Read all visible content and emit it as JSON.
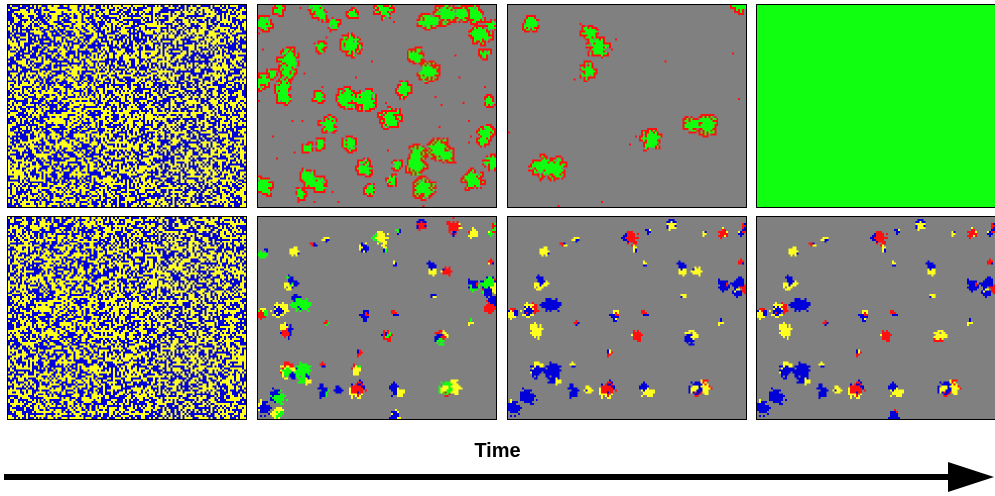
{
  "axis": {
    "label": "Time"
  },
  "colors": {
    "blue": "#0000d8",
    "yellow": "#ffff20",
    "gray": "#808080",
    "red": "#ff1010",
    "green": "#10ff10",
    "border": "#000000"
  },
  "rows": [
    {
      "panels": [
        {
          "stage": 1,
          "state": "random mix of blue and yellow"
        },
        {
          "stage": 2,
          "state": "gray background with many green clusters outlined in red"
        },
        {
          "stage": 3,
          "state": "gray background with a few green clusters outlined in red"
        },
        {
          "stage": 4,
          "state": "uniform green"
        }
      ]
    },
    {
      "panels": [
        {
          "stage": 1,
          "state": "random mix of blue and yellow"
        },
        {
          "stage": 2,
          "state": "gray background with many mixed clusters of blue, yellow, red and green"
        },
        {
          "stage": 3,
          "state": "gray background with mixed clusters of blue, yellow, red"
        },
        {
          "stage": 4,
          "state": "gray background with mixed clusters of blue, yellow, red"
        }
      ]
    }
  ]
}
